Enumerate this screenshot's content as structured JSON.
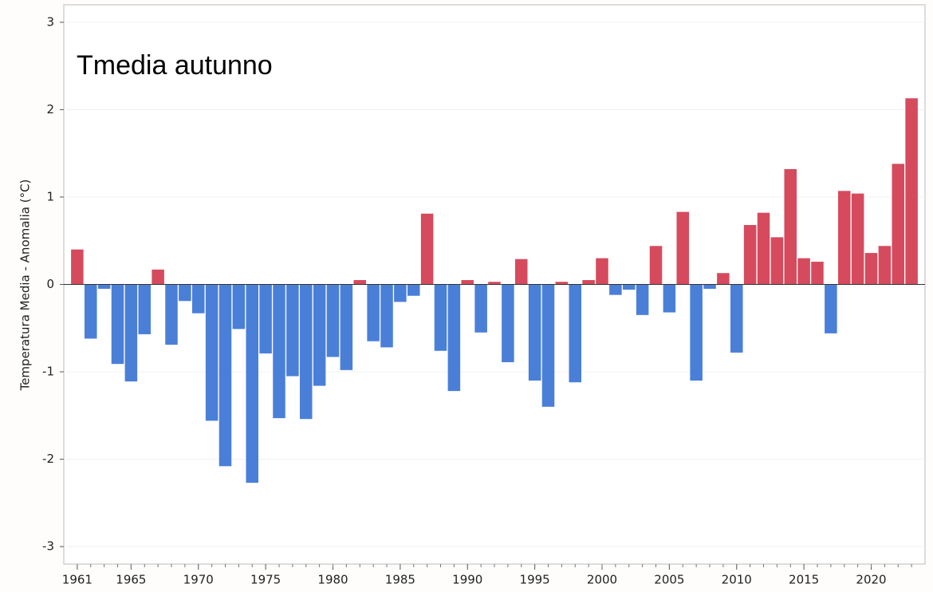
{
  "chart_data": {
    "type": "bar",
    "title": "Tmedia autunno",
    "y_label": "Temperatura Media - Anomalia (°C)",
    "x": [
      1961,
      1962,
      1963,
      1964,
      1965,
      1966,
      1967,
      1968,
      1969,
      1970,
      1971,
      1972,
      1973,
      1974,
      1975,
      1976,
      1977,
      1978,
      1979,
      1980,
      1981,
      1982,
      1983,
      1984,
      1985,
      1986,
      1987,
      1988,
      1989,
      1990,
      1991,
      1992,
      1993,
      1994,
      1995,
      1996,
      1997,
      1998,
      1999,
      2000,
      2001,
      2002,
      2003,
      2004,
      2005,
      2006,
      2007,
      2008,
      2009,
      2010,
      2011,
      2012,
      2013,
      2014,
      2015,
      2016,
      2017,
      2018,
      2019,
      2020,
      2021,
      2022,
      2023
    ],
    "values": [
      0.4,
      -0.62,
      -0.05,
      -0.91,
      -1.11,
      -0.57,
      0.17,
      -0.69,
      -0.19,
      -0.33,
      -1.56,
      -2.08,
      -0.51,
      -2.27,
      -0.79,
      -1.53,
      -1.05,
      -1.54,
      -1.16,
      -0.83,
      -0.98,
      0.05,
      -0.65,
      -0.72,
      -0.2,
      -0.13,
      0.81,
      -0.76,
      -1.22,
      0.05,
      -0.55,
      0.03,
      -0.89,
      0.29,
      -1.1,
      -1.4,
      0.03,
      -1.12,
      0.05,
      0.3,
      -0.12,
      -0.06,
      -0.35,
      0.44,
      -0.32,
      0.83,
      -1.1,
      -0.05,
      0.13,
      -0.78,
      0.68,
      0.82,
      0.54,
      1.32,
      0.3,
      0.26,
      -0.56,
      1.07,
      1.04,
      0.36,
      0.44,
      1.38,
      2.13
    ],
    "positive_color": "#d64a5e",
    "negative_color": "#4a7fd8",
    "xlim": [
      1960,
      2024
    ],
    "xticks": [
      1961,
      1965,
      1970,
      1975,
      1980,
      1985,
      1990,
      1995,
      2000,
      2005,
      2010,
      2015,
      2020
    ],
    "ylim": [
      -3.2,
      3.2
    ],
    "yticks": [
      -3,
      -2,
      -1,
      0,
      1,
      2,
      3
    ],
    "grid": true
  }
}
